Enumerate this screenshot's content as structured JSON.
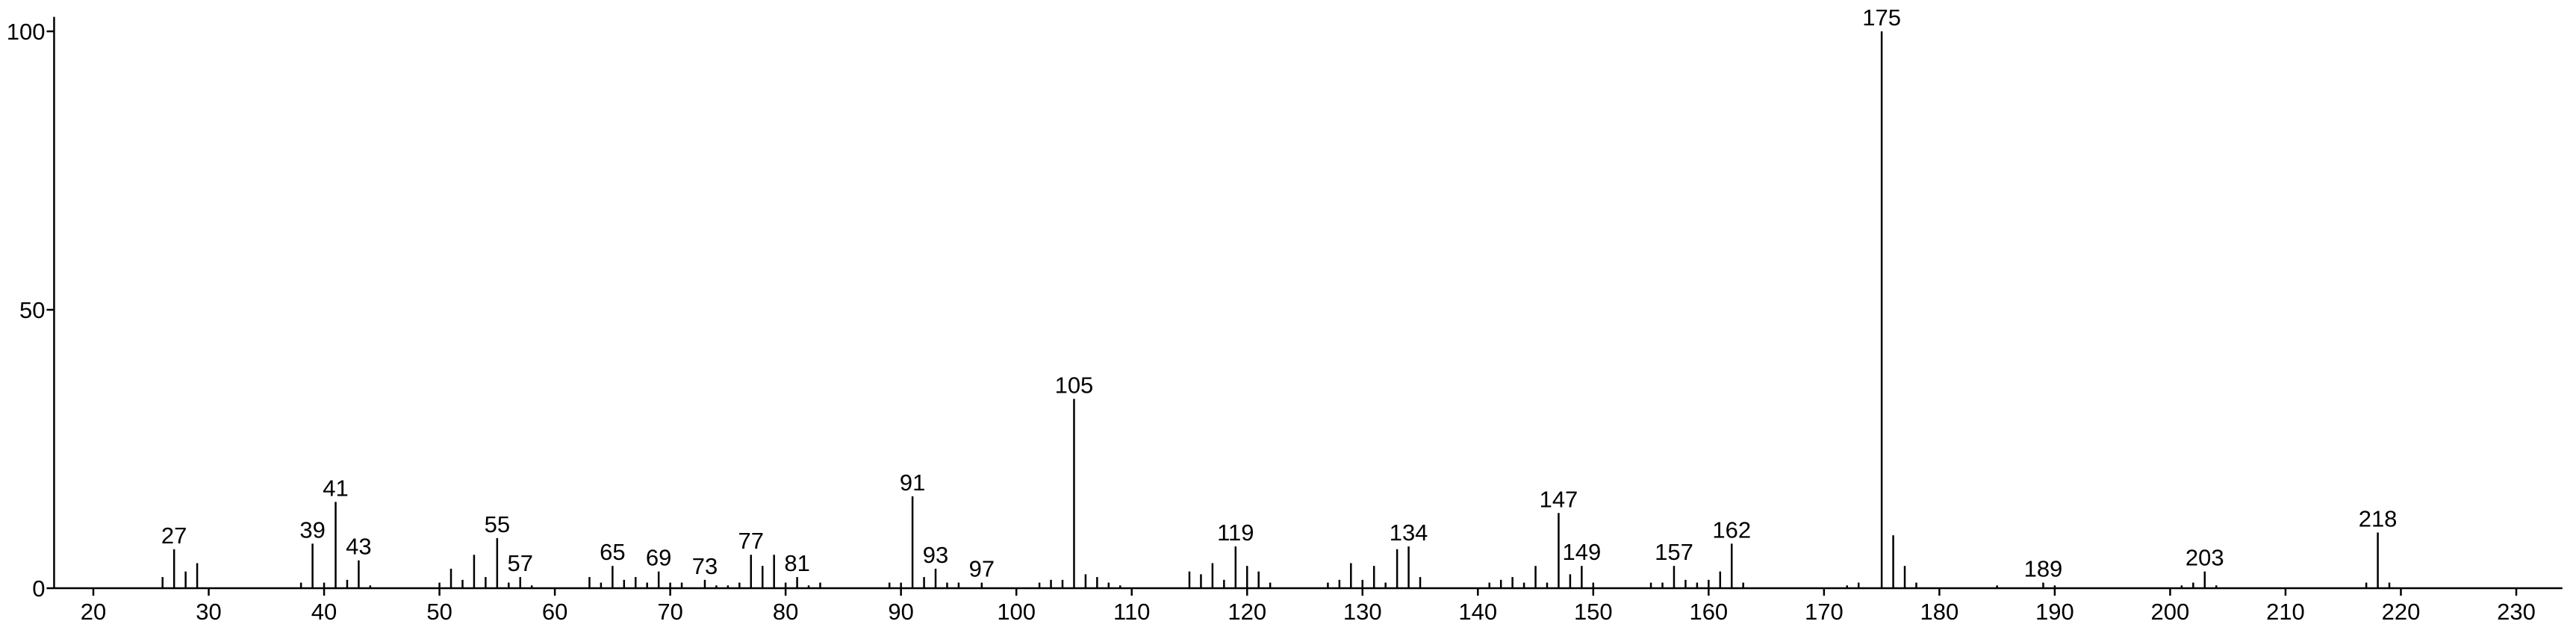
{
  "chart_data": {
    "type": "stem",
    "x": [
      26,
      27,
      28,
      29,
      38,
      39,
      40,
      41,
      42,
      43,
      44,
      50,
      51,
      52,
      53,
      54,
      55,
      56,
      57,
      58,
      63,
      64,
      65,
      66,
      67,
      68,
      69,
      70,
      71,
      73,
      74,
      75,
      76,
      77,
      78,
      79,
      80,
      81,
      82,
      83,
      89,
      90,
      91,
      92,
      93,
      94,
      95,
      97,
      102,
      103,
      104,
      105,
      106,
      107,
      108,
      109,
      115,
      116,
      117,
      118,
      119,
      120,
      121,
      122,
      127,
      128,
      129,
      130,
      131,
      132,
      133,
      134,
      135,
      141,
      142,
      143,
      144,
      145,
      146,
      147,
      148,
      149,
      150,
      155,
      156,
      157,
      158,
      159,
      160,
      161,
      162,
      163,
      172,
      173,
      175,
      176,
      177,
      178,
      185,
      189,
      190,
      201,
      202,
      203,
      204,
      217,
      218,
      219
    ],
    "values": [
      2,
      7,
      3,
      4.5,
      1,
      8,
      1,
      15.5,
      1.5,
      5,
      0.5,
      1,
      3.5,
      1.5,
      6,
      2,
      9,
      1,
      2,
      0.5,
      2,
      1,
      4,
      1.5,
      2,
      1,
      3,
      1,
      1,
      1.5,
      0.5,
      0.5,
      1,
      6,
      4,
      6,
      1,
      2,
      0.5,
      1,
      1,
      1,
      16.5,
      2,
      3.5,
      1,
      1,
      1,
      1,
      1.5,
      1.5,
      34,
      2.5,
      2,
      1,
      0.5,
      3,
      2.5,
      4.5,
      1.5,
      7.5,
      4,
      3,
      1,
      1,
      1.5,
      4.5,
      1.5,
      4,
      1,
      7,
      7.5,
      2,
      1,
      1.5,
      2,
      1,
      4,
      1,
      13.5,
      2.5,
      4,
      1,
      1,
      1,
      4,
      1.5,
      1,
      1.5,
      3,
      8,
      1,
      0.5,
      1,
      100,
      9.5,
      4,
      1,
      0.5,
      1,
      0.5,
      0.5,
      1,
      3,
      0.5,
      1,
      10,
      1
    ],
    "labels": [
      null,
      27,
      null,
      null,
      null,
      39,
      null,
      41,
      null,
      43,
      null,
      null,
      null,
      null,
      null,
      null,
      55,
      null,
      57,
      null,
      null,
      null,
      65,
      null,
      null,
      null,
      69,
      null,
      null,
      73,
      null,
      null,
      null,
      77,
      null,
      null,
      null,
      81,
      null,
      null,
      null,
      null,
      91,
      null,
      93,
      null,
      null,
      97,
      null,
      null,
      null,
      105,
      null,
      null,
      null,
      null,
      null,
      null,
      null,
      null,
      119,
      null,
      null,
      null,
      null,
      null,
      null,
      null,
      null,
      null,
      null,
      134,
      null,
      null,
      null,
      null,
      null,
      null,
      null,
      147,
      null,
      149,
      null,
      null,
      null,
      157,
      null,
      null,
      null,
      null,
      162,
      null,
      null,
      null,
      175,
      null,
      null,
      null,
      null,
      189,
      null,
      null,
      null,
      203,
      null,
      null,
      218,
      null
    ],
    "color": "#000000",
    "xlim": [
      16.6,
      234
    ],
    "ylim": [
      0,
      102.6
    ],
    "xticks": [
      20,
      30,
      40,
      50,
      60,
      70,
      80,
      90,
      100,
      110,
      120,
      130,
      140,
      150,
      160,
      170,
      180,
      190,
      200,
      210,
      220,
      230
    ],
    "yticks": [
      0,
      50,
      100
    ]
  }
}
